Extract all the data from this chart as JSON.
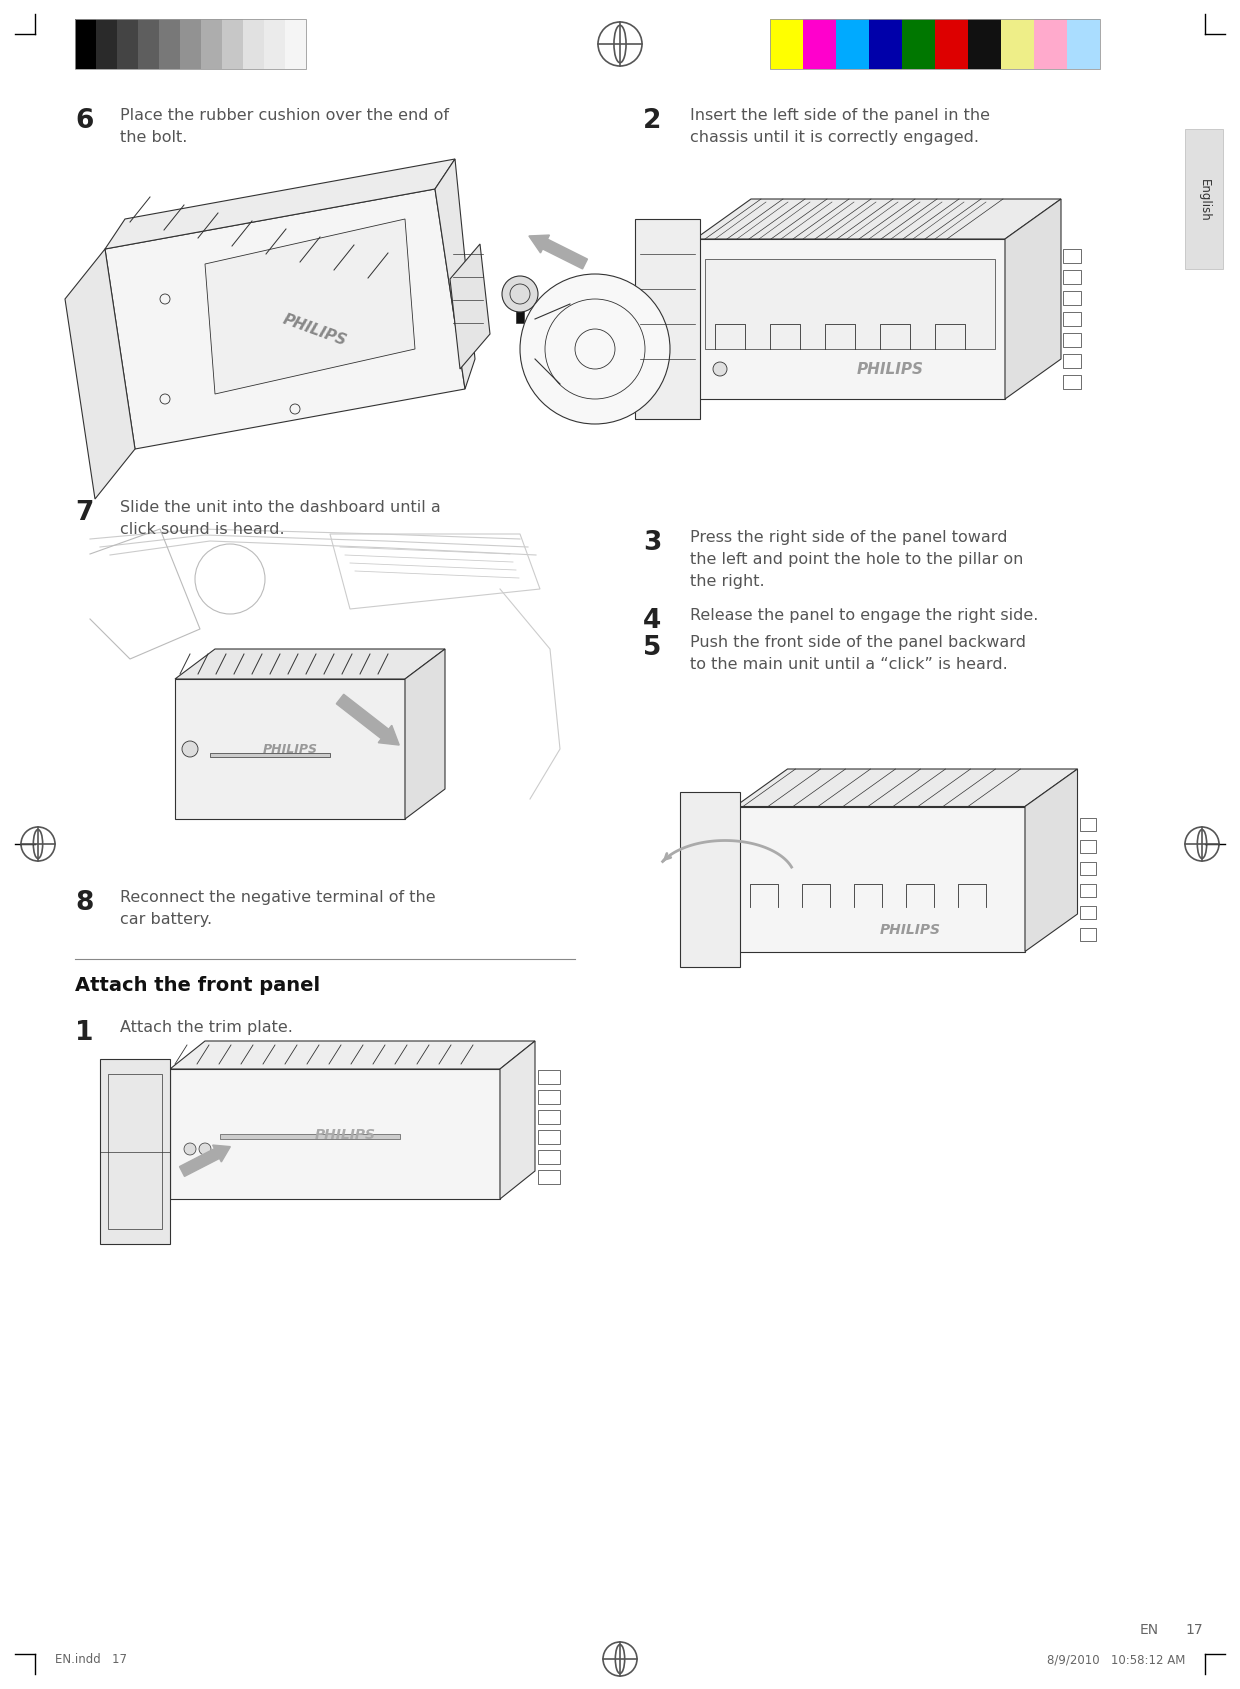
{
  "background_color": "#ffffff",
  "footer_left": "EN.indd   17",
  "footer_right": "8/9/2010   10:58:12 AM",
  "footer_label_en": "EN",
  "footer_label_num": "17",
  "grayscale_swatches": [
    "#000000",
    "#2a2a2a",
    "#444444",
    "#5e5e5e",
    "#787878",
    "#929292",
    "#adadad",
    "#c7c7c7",
    "#e1e1e1",
    "#ebebeb",
    "#f5f5f5"
  ],
  "color_swatches": [
    "#ffff00",
    "#ff00cc",
    "#00aaff",
    "#0000aa",
    "#007700",
    "#dd0000",
    "#111111",
    "#eeee88",
    "#ffaacc",
    "#aaddff"
  ],
  "text_color": "#555555",
  "step_num_color": "#222222",
  "heading_color": "#111111",
  "line_color": "#444444",
  "img_line_color": "#333333",
  "img_fill_color": "#f5f5f5",
  "tab_fill": "#e0e0e0",
  "tab_text": "English",
  "step6_num": "6",
  "step6_text1": "Place the rubber cushion over the end of",
  "step6_text2": "the bolt.",
  "step7_num": "7",
  "step7_text1": "Slide the unit into the dashboard until a",
  "step7_text2": "click sound is heard.",
  "step8_num": "8",
  "step8_text1": "Reconnect the negative terminal of the",
  "step8_text2": "car battery.",
  "section_heading": "Attach the front panel",
  "step1_num": "1",
  "step1_text": "Attach the trim plate.",
  "step2_num": "2",
  "step2_text1": "Insert the left side of the panel in the",
  "step2_text2": "chassis until it is correctly engaged.",
  "step3_num": "3",
  "step3_text1": "Press the right side of the panel toward",
  "step3_text2": "the left and point the hole to the pillar on",
  "step3_text3": "the right.",
  "step4_num": "4",
  "step4_text": "Release the panel to engage the right side.",
  "step5_num": "5",
  "step5_text1": "Push the front side of the panel backward",
  "step5_text2": "to the main unit until a “click” is heard."
}
